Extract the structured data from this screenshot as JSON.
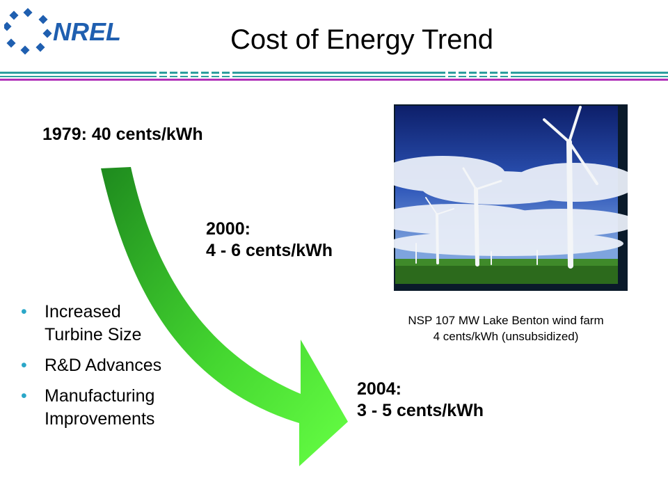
{
  "logo": {
    "text": "NREL",
    "icon": "nrel-logo"
  },
  "title": "Cost of Energy Trend",
  "points": {
    "y1979": {
      "label": "1979: 40 cents/kWh"
    },
    "y2000": {
      "line1": "2000:",
      "line2": "4 - 6 cents/kWh"
    },
    "y2004": {
      "line1": "2004:",
      "line2": "3 - 5 cents/kWh"
    }
  },
  "photo": {
    "subject": "wind turbines in field",
    "caption_line1": "NSP 107 MW Lake Benton wind farm",
    "caption_line2": "4 cents/kWh (unsubsidized)"
  },
  "bullets": [
    {
      "line1": "Increased",
      "line2": "Turbine Size"
    },
    {
      "line1": "R&D Advances",
      "line2": ""
    },
    {
      "line1": "Manufacturing",
      "line2": "Improvements"
    }
  ],
  "colors": {
    "title_rule_teal": "#2f9e9e",
    "title_rule_purple": "#b030b8",
    "arrow_dark": "#1e8a1e",
    "arrow_light": "#66ff44",
    "bullet": "#2aa7c8",
    "logo_blue": "#1f5fb0"
  }
}
